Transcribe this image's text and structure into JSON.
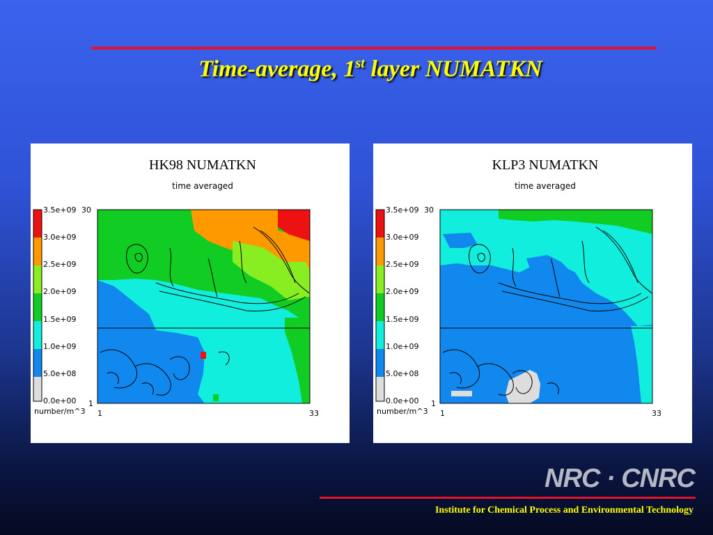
{
  "slide": {
    "title_main": "Time-average, 1",
    "title_sup": "st",
    "title_rest": " layer  NUMATKN",
    "logo_text": "NRC · CNRC",
    "institute": "Institute for Chemical Process and Environmental Technology"
  },
  "panels": [
    {
      "title": "HK98 NUMATKN",
      "subtitle": "time averaged",
      "y_top_label": "30",
      "y_bottom_label": "1",
      "x_left_label": "1",
      "x_right_label": "33"
    },
    {
      "title": "KLP3 NUMATKN",
      "subtitle": "time averaged",
      "y_top_label": "30",
      "y_bottom_label": "1",
      "x_left_label": "1",
      "x_right_label": "33"
    }
  ],
  "legend": {
    "labels": [
      "3.5e+09",
      "3.0e+09",
      "2.5e+09",
      "2.0e+09",
      "1.5e+09",
      "1.0e+09",
      "5.0e+08",
      "0.0e+00"
    ],
    "unit": "number/m^3",
    "colors": [
      "#ee1111",
      "#ff9900",
      "#88ee22",
      "#11cc22",
      "#11eedd",
      "#1188ee",
      "#dddddd"
    ]
  },
  "colors": {
    "rule": "#e8102a",
    "title": "#ffff00",
    "institute": "#ffff00"
  }
}
